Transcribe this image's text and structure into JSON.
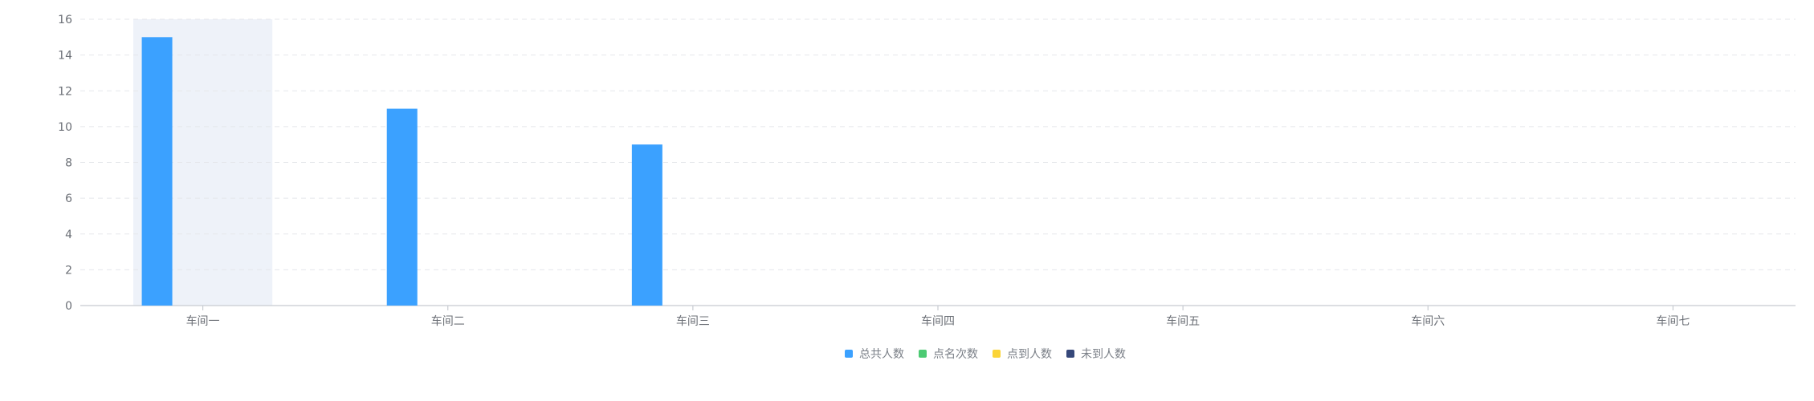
{
  "chart_data": {
    "type": "bar",
    "categories": [
      "车间一",
      "车间二",
      "车间三",
      "车间四",
      "车间五",
      "车间六",
      "车间七"
    ],
    "series": [
      {
        "name": "总共人数",
        "color": "#3ba1ff",
        "values": [
          15,
          11,
          9,
          0,
          0,
          0,
          0
        ]
      },
      {
        "name": "点名次数",
        "color": "#4cca73",
        "values": [
          0,
          0,
          0,
          0,
          0,
          0,
          0
        ]
      },
      {
        "name": "点到人数",
        "color": "#fbd437",
        "values": [
          0,
          0,
          0,
          0,
          0,
          0,
          0
        ]
      },
      {
        "name": "未到人数",
        "color": "#36487a",
        "values": [
          0,
          0,
          0,
          0,
          0,
          0,
          0
        ]
      }
    ],
    "ylim": [
      0,
      16
    ],
    "yticks": [
      0,
      2,
      4,
      6,
      8,
      10,
      12,
      14,
      16
    ],
    "grid": true,
    "legend": "bottom-center",
    "highlighted_category": "车间一",
    "colors": {
      "highlight": "#eef2f9",
      "grid": "#e5e7eb",
      "axis": "#c7cbd1"
    }
  }
}
